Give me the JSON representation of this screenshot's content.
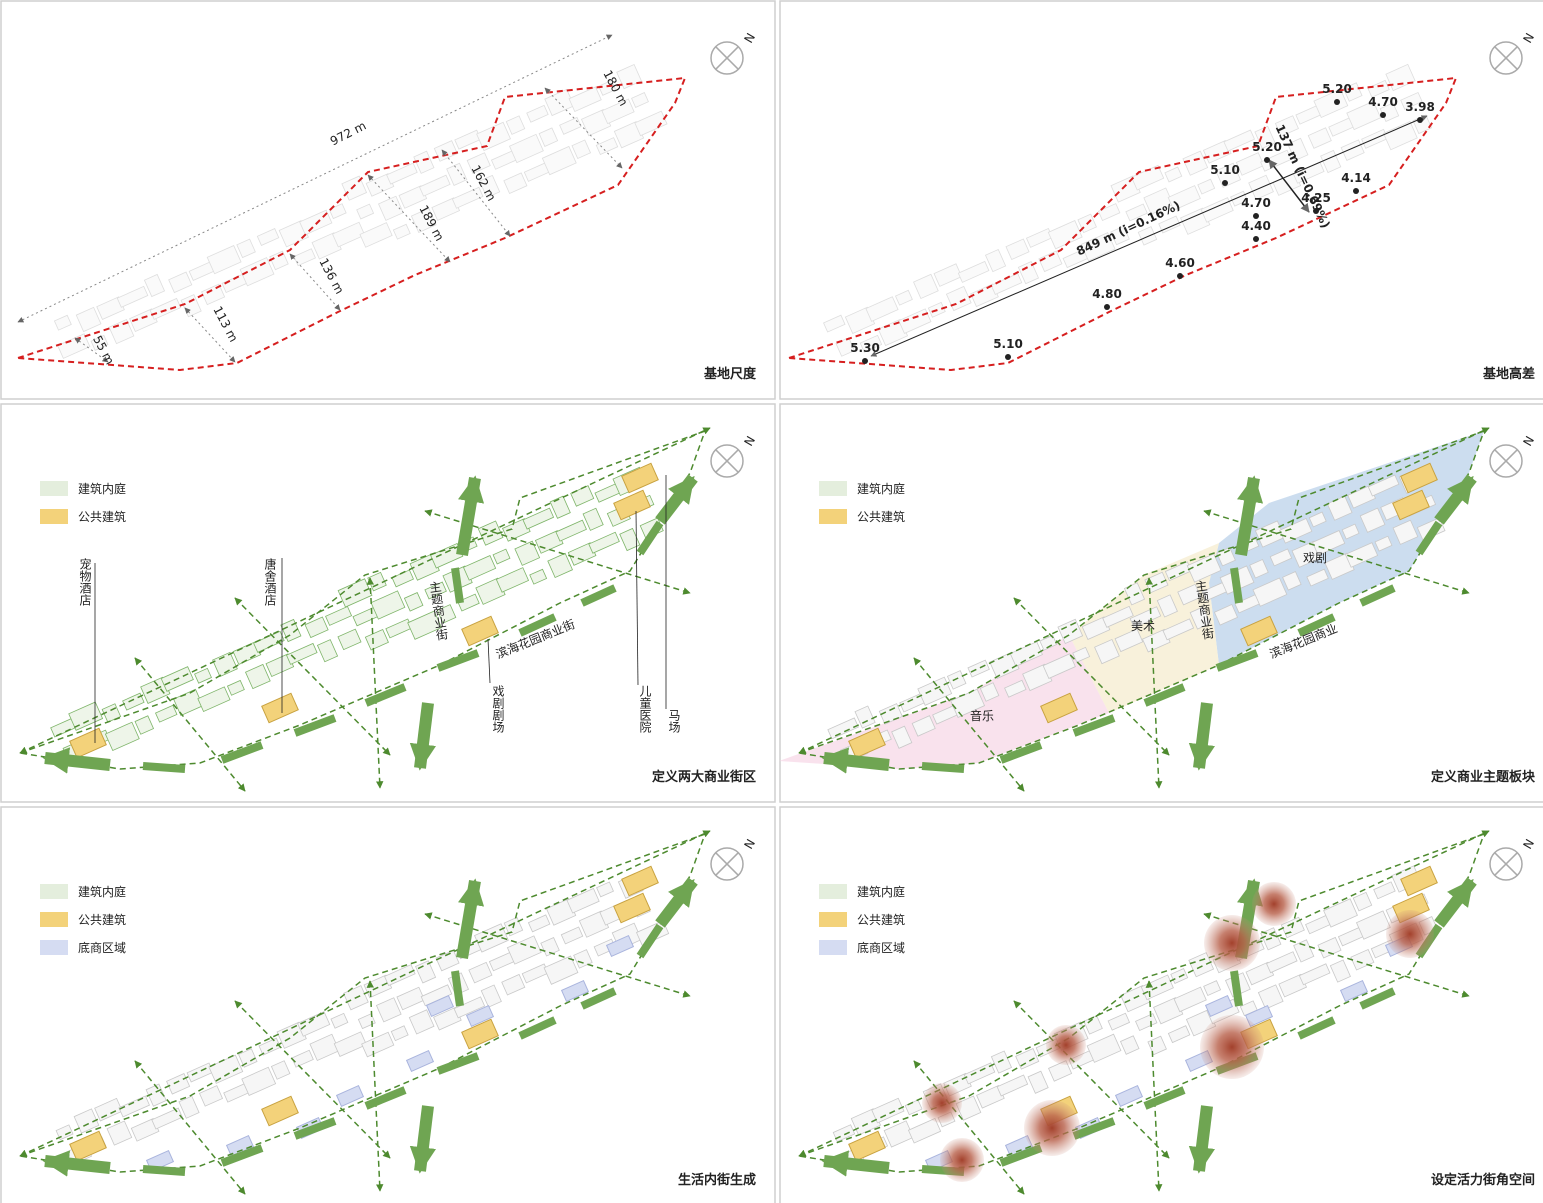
{
  "compass_label": "N",
  "panels": [
    {
      "title": "基地尺度",
      "labels": [
        "972 m",
        "180 m",
        "162 m",
        "189 m",
        "136 m",
        "113 m",
        "55 m"
      ]
    },
    {
      "title": "基地高差",
      "labels": [
        "5.20",
        "4.70",
        "3.98",
        "5.20",
        "5.10",
        "4.14",
        "4.70",
        "4.25",
        "4.40",
        "4.60",
        "4.80",
        "5.10",
        "5.30",
        "849 m (i=0.16%)",
        "137 m (i=0.69%)"
      ]
    },
    {
      "title": "定义两大商业街区",
      "legend": [
        "建筑内庭",
        "公共建筑"
      ],
      "labels": [
        "宠物酒店",
        "唐舍酒店",
        "主题商业街",
        "滨海花园商业街",
        "戏剧剧场",
        "儿童医院",
        "马场"
      ]
    },
    {
      "title": "定义商业主题板块",
      "legend": [
        "建筑内庭",
        "公共建筑"
      ],
      "labels": [
        "戏剧",
        "美术",
        "音乐",
        "主题商业街",
        "滨海花园商业"
      ]
    },
    {
      "title": "生活内街生成",
      "legend": [
        "建筑内庭",
        "公共建筑",
        "底商区域"
      ]
    },
    {
      "title": "设定活力街角空间",
      "legend": [
        "建筑内庭",
        "公共建筑",
        "底商区域"
      ]
    }
  ]
}
